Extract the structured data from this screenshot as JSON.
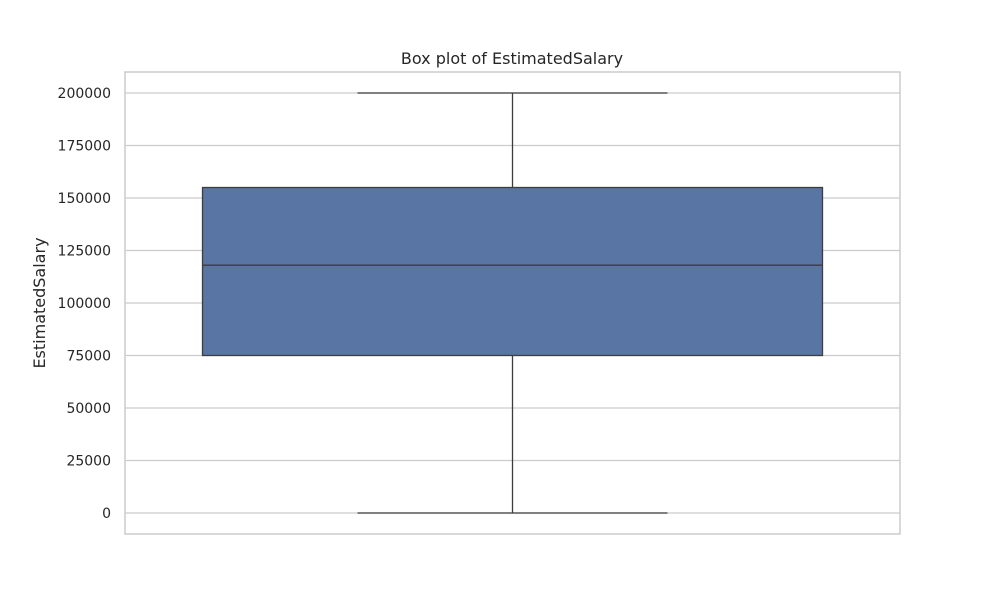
{
  "chart_data": {
    "type": "box",
    "title": "Box plot of EstimatedSalary",
    "xlabel": "",
    "ylabel": "EstimatedSalary",
    "ylim": [
      -10000,
      210000
    ],
    "y_ticks": [
      0,
      25000,
      50000,
      75000,
      100000,
      125000,
      150000,
      175000,
      200000
    ],
    "tick_labels": [
      "0",
      "25000",
      "50000",
      "75000",
      "100000",
      "125000",
      "150000",
      "175000",
      "200000"
    ],
    "grid": true,
    "legend": "none",
    "box": {
      "min": 0,
      "q1": 75000,
      "median": 118000,
      "q3": 155000,
      "max": 200000
    },
    "colors": {
      "box_fill": "#5875a4",
      "line": "#3d3d3d",
      "grid": "#cccccc",
      "frame": "#cccccc"
    }
  }
}
